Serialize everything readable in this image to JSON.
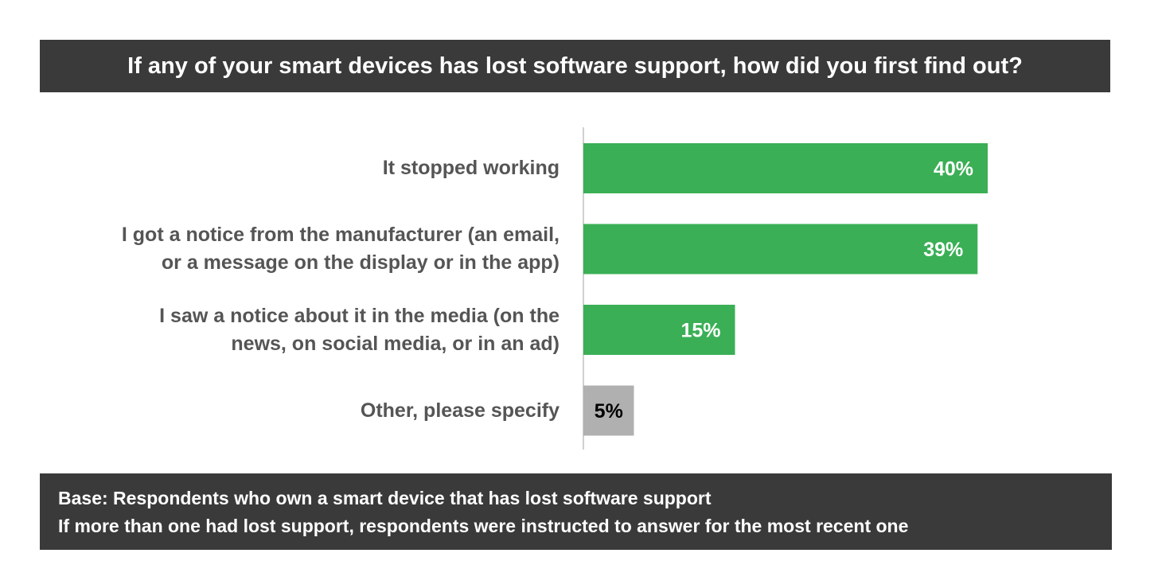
{
  "chart_data": {
    "type": "bar",
    "orientation": "horizontal",
    "title": "If any of your smart devices has lost software support, how did you first find out?",
    "categories": [
      "It stopped working",
      "I got a notice from the manufacturer (an email,\nor a message on the display or in the app)",
      "I saw a notice about it in the media (on the\nnews, on social media, or in an ad)",
      "Other, please specify"
    ],
    "values": [
      40,
      39,
      15,
      5
    ],
    "value_labels": [
      "40%",
      "39%",
      "15%",
      "5%"
    ],
    "unit": "%",
    "xlim": [
      0,
      100
    ],
    "grid": false,
    "legend": "none",
    "colors": [
      "#3aaf55",
      "#3aaf55",
      "#3aaf55",
      "#b0b0b0"
    ],
    "label_colors": [
      "#ffffff",
      "#ffffff",
      "#ffffff",
      "#000000"
    ]
  },
  "footer": {
    "line1": "Base: Respondents who own a smart device that has lost software support",
    "line2": "If more than one had lost support, respondents were instructed to answer for the most recent one"
  },
  "colors": {
    "banner_background": "#3a3a3a",
    "banner_text": "#ffffff",
    "category_text": "#555555",
    "axis_line": "#d0d0d0"
  }
}
